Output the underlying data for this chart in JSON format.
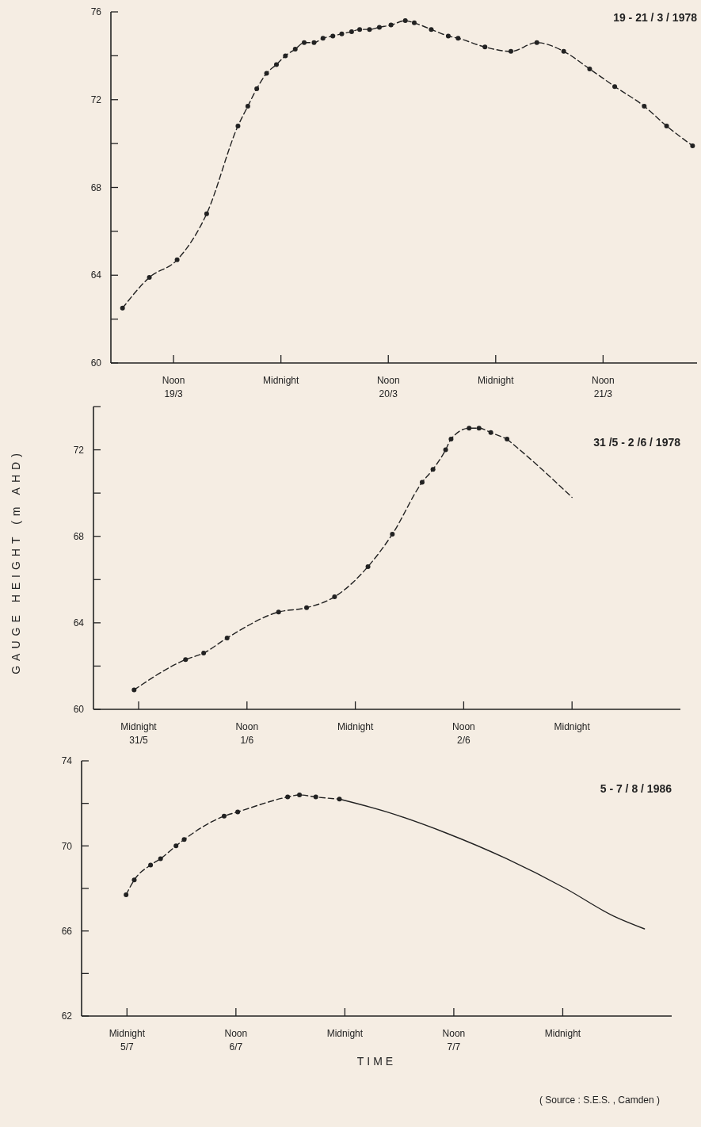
{
  "chart_data": [
    {
      "type": "line",
      "title": "19 - 21 / 3 / 1978",
      "xlim": [
        "1978-03-19T05:00",
        "1978-03-21T22:30"
      ],
      "ylim": [
        60,
        76
      ],
      "xticks": [
        {
          "value": "1978-03-19T12:00",
          "label": "Noon\n19/3"
        },
        {
          "value": "1978-03-20T00:00",
          "label": "Midnight"
        },
        {
          "value": "1978-03-20T12:00",
          "label": "Noon\n20/3"
        },
        {
          "value": "1978-03-21T00:00",
          "label": "Midnight"
        },
        {
          "value": "1978-03-21T12:00",
          "label": "Noon\n21/3"
        }
      ],
      "yticks": [
        60,
        {
          "value": 62,
          "label": null
        },
        64,
        {
          "value": 66,
          "label": null
        },
        68,
        {
          "value": 70,
          "label": null
        },
        72,
        {
          "value": 74,
          "label": null
        },
        76
      ],
      "series": [
        {
          "color": "#222222",
          "marker": "circle",
          "line_style": "dashed",
          "x": [
            "1978-03-19T06:18",
            "1978-03-19T09:18",
            "1978-03-19T12:24",
            "1978-03-19T15:42",
            "1978-03-19T19:12",
            "1978-03-19T20:18",
            "1978-03-19T21:18",
            "1978-03-19T22:24",
            "1978-03-19T23:30",
            "1978-03-20T00:30",
            "1978-03-20T01:36",
            "1978-03-20T02:36",
            "1978-03-20T03:42",
            "1978-03-20T04:42",
            "1978-03-20T05:48",
            "1978-03-20T06:48",
            "1978-03-20T07:54",
            "1978-03-20T08:48",
            "1978-03-20T09:54",
            "1978-03-20T11:00",
            "1978-03-20T12:18",
            "1978-03-20T13:54",
            "1978-03-20T14:54",
            "1978-03-20T16:48",
            "1978-03-20T18:42",
            "1978-03-20T19:48",
            "1978-03-20T22:48",
            "1978-03-21T01:42",
            "1978-03-21T04:36",
            "1978-03-21T07:36",
            "1978-03-21T10:30",
            "1978-03-21T13:18",
            "1978-03-21T16:36",
            "1978-03-21T19:06",
            "1978-03-21T22:00"
          ],
          "values": [
            62.5,
            63.9,
            64.7,
            66.8,
            70.8,
            71.7,
            72.5,
            73.2,
            73.6,
            74.0,
            74.3,
            74.6,
            74.6,
            74.8,
            74.9,
            75.0,
            75.1,
            75.2,
            75.2,
            75.3,
            75.4,
            75.6,
            75.5,
            75.2,
            74.9,
            74.8,
            74.4,
            74.2,
            74.6,
            74.2,
            73.4,
            72.6,
            71.7,
            70.8,
            69.9
          ]
        }
      ]
    },
    {
      "type": "line",
      "title": "31 /5 - 2 /6 / 1978",
      "ylabel": "GAUGE HEIGHT (m AHD)",
      "xlim": [
        "1978-05-31T19:00",
        "1978-06-03T12:00"
      ],
      "ylim": [
        60,
        74
      ],
      "xticks": [
        {
          "value": "1978-06-01T00:00",
          "label": "Midnight\n31/5"
        },
        {
          "value": "1978-06-01T12:00",
          "label": "Noon\n1/6"
        },
        {
          "value": "1978-06-02T00:00",
          "label": "Midnight"
        },
        {
          "value": "1978-06-02T12:00",
          "label": "Noon\n2/6"
        },
        {
          "value": "1978-06-03T00:00",
          "label": "Midnight"
        }
      ],
      "yticks": [
        60,
        {
          "value": 62,
          "label": null
        },
        64,
        {
          "value": 66,
          "label": null
        },
        68,
        {
          "value": 70,
          "label": null
        },
        72,
        {
          "value": 74,
          "label": null
        }
      ],
      "series": [
        {
          "color": "#222222",
          "marker": "circle",
          "line_style": "dashed",
          "x": [
            "1978-05-31T23:30",
            "1978-06-01T05:12",
            "1978-06-01T07:12",
            "1978-06-01T09:48",
            "1978-06-01T15:30",
            "1978-06-01T18:36",
            "1978-06-01T21:42",
            "1978-06-02T01:24",
            "1978-06-02T04:06",
            "1978-06-02T07:24",
            "1978-06-02T08:36",
            "1978-06-02T10:00",
            "1978-06-02T10:36",
            "1978-06-02T12:36",
            "1978-06-02T13:42",
            "1978-06-02T15:00",
            "1978-06-02T16:48"
          ],
          "values": [
            60.9,
            62.3,
            62.6,
            63.3,
            64.5,
            64.7,
            65.2,
            66.6,
            68.1,
            70.5,
            71.1,
            72.0,
            72.5,
            73.0,
            73.0,
            72.8,
            72.5
          ]
        },
        {
          "color": "#222222",
          "marker": "none",
          "line_style": "dashed",
          "x": [
            "1978-06-02T16:48",
            "1978-06-02T20:24",
            "1978-06-03T00:00"
          ],
          "values": [
            72.5,
            71.2,
            69.8
          ]
        }
      ]
    },
    {
      "type": "line",
      "title": "5 - 7 / 8 / 1986",
      "xlabel": "TIME",
      "annotations": [
        "( Source : S.E.S. , Camden )"
      ],
      "xlim": [
        "1986-07-05T19:00",
        "1986-07-08T12:00"
      ],
      "ylim": [
        62,
        74
      ],
      "xticks": [
        {
          "value": "1986-07-06T00:00",
          "label": "Midnight\n5/7"
        },
        {
          "value": "1986-07-06T12:00",
          "label": "Noon\n6/7"
        },
        {
          "value": "1986-07-07T00:00",
          "label": "Midnight"
        },
        {
          "value": "1986-07-07T12:00",
          "label": "Noon\n7/7"
        },
        {
          "value": "1986-07-08T00:00",
          "label": "Midnight"
        }
      ],
      "yticks": [
        62,
        {
          "value": 64,
          "label": null
        },
        66,
        {
          "value": 68,
          "label": null
        },
        70,
        {
          "value": 72,
          "label": null
        },
        74
      ],
      "series": [
        {
          "color": "#222222",
          "marker": "circle",
          "line_style": "dashed",
          "x": [
            "1986-07-05T23:54",
            "1986-07-06T00:48",
            "1986-07-06T02:36",
            "1986-07-06T03:42",
            "1986-07-06T05:24",
            "1986-07-06T06:18",
            "1986-07-06T10:42",
            "1986-07-06T12:12",
            "1986-07-06T17:42",
            "1986-07-06T19:00",
            "1986-07-06T20:48",
            "1986-07-06T23:24"
          ],
          "values": [
            67.7,
            68.4,
            69.1,
            69.4,
            70.0,
            70.3,
            71.4,
            71.6,
            72.3,
            72.4,
            72.3,
            72.2
          ]
        },
        {
          "color": "#222222",
          "marker": "none",
          "line_style": "solid",
          "x": [
            "1986-07-06T23:24",
            "1986-07-07T04:36",
            "1986-07-07T11:12",
            "1986-07-07T17:48",
            "1986-07-08T00:18",
            "1986-07-08T05:36",
            "1986-07-08T09:00"
          ],
          "values": [
            72.2,
            71.6,
            70.6,
            69.4,
            68.0,
            66.7,
            66.1
          ]
        }
      ]
    }
  ]
}
